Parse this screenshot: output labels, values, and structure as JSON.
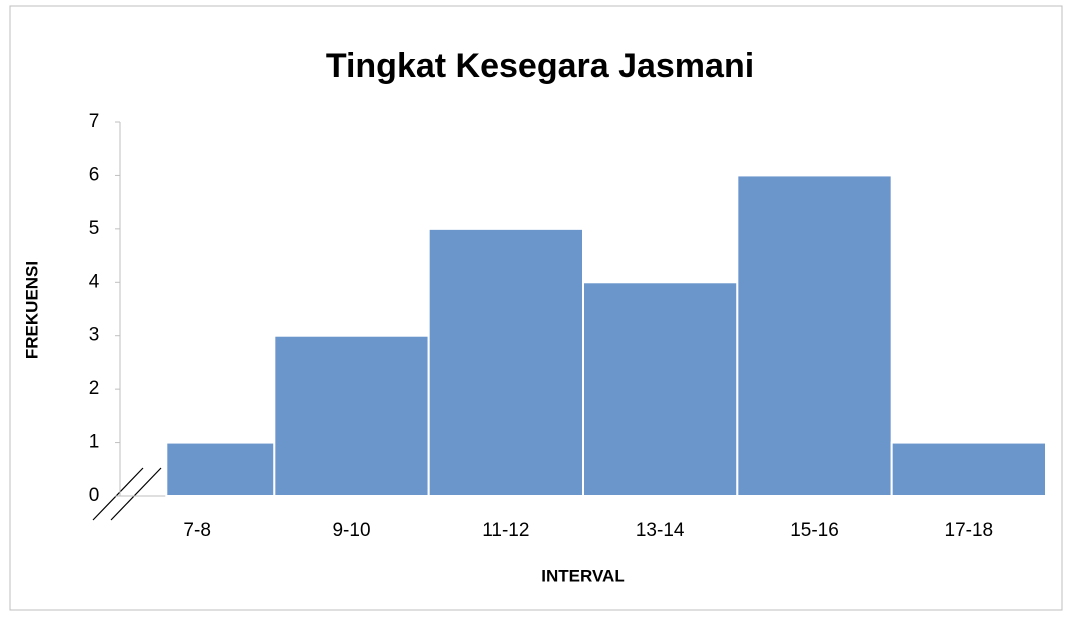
{
  "chart_data": {
    "type": "bar",
    "title": "Tingkat Kesegara Jasmani",
    "x_label": "INTERVAL",
    "y_label": "FREKUENSI",
    "categories": [
      "7-8",
      "9-10",
      "11-12",
      "13-14",
      "15-16",
      "17-18"
    ],
    "values": [
      1,
      3,
      5,
      4,
      6,
      1
    ],
    "color": "#6a96cc",
    "ylim": [
      0,
      7
    ],
    "yticks": [
      0,
      1,
      2,
      3,
      4,
      5,
      6,
      7
    ],
    "grid": false
  }
}
